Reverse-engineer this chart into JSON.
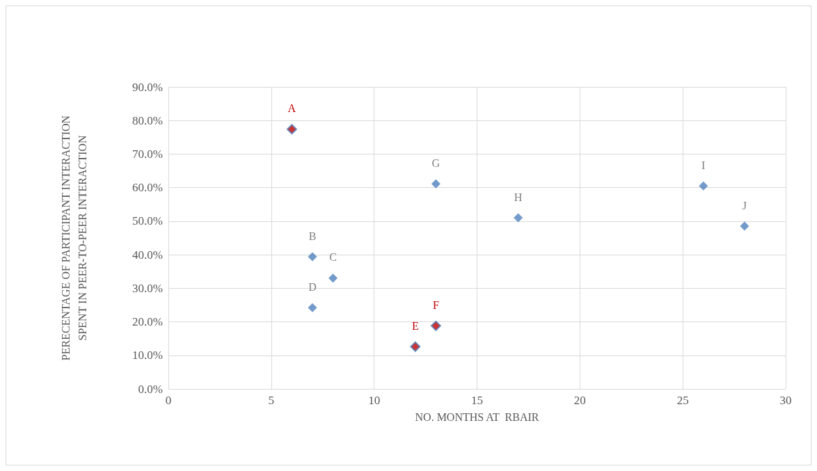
{
  "chart_data": {
    "type": "scatter",
    "xlabel": "NO. MONTHS AT  RBAIR",
    "ylabel": "PERECENTAGE OF PARTICIPANT INTERACTION\nSPENT IN PEER-TO-PEER INTERACTION",
    "series": [
      {
        "color": "#4f81bd",
        "x": [
          7,
          8,
          7,
          13,
          17,
          26,
          28
        ],
        "values": [
          39.4,
          33.0,
          24.2,
          61.1,
          51.0,
          60.5,
          48.5
        ]
      },
      {
        "color": "#c00000",
        "x": [
          6,
          12,
          13
        ],
        "values": [
          77.4,
          12.6,
          18.8
        ]
      }
    ],
    "annotations": [
      {
        "text": "A",
        "x": 6,
        "y": 77.4
      },
      {
        "text": "B",
        "x": 7,
        "y": 39.4
      },
      {
        "text": "C",
        "x": 8,
        "y": 33.0
      },
      {
        "text": "D",
        "x": 7,
        "y": 24.2
      },
      {
        "text": "E",
        "x": 12,
        "y": 12.6
      },
      {
        "text": "F",
        "x": 13,
        "y": 18.8
      },
      {
        "text": "G",
        "x": 13,
        "y": 61.1
      },
      {
        "text": "H",
        "x": 17,
        "y": 51.0
      },
      {
        "text": "I",
        "x": 26,
        "y": 60.5
      },
      {
        "text": "J",
        "x": 28,
        "y": 48.5
      }
    ],
    "xlim": [
      0,
      30
    ],
    "xticks": [
      0,
      5,
      10,
      15,
      20,
      25,
      30
    ],
    "ylim": [
      0,
      90
    ],
    "yticks": [
      {
        "value": 0,
        "label": "0.0%"
      },
      {
        "value": 10,
        "label": "10.0%"
      },
      {
        "value": 20,
        "label": "20.0%"
      },
      {
        "value": 30,
        "label": "30.0%"
      },
      {
        "value": 40,
        "label": "40.0%"
      },
      {
        "value": 50,
        "label": "50.0%"
      },
      {
        "value": 60,
        "label": "60.0%"
      },
      {
        "value": 70,
        "label": "70.0%"
      },
      {
        "value": 80,
        "label": "80.0%"
      },
      {
        "value": 90,
        "label": "90.0%"
      }
    ],
    "grid": true,
    "marker": "diamond"
  }
}
